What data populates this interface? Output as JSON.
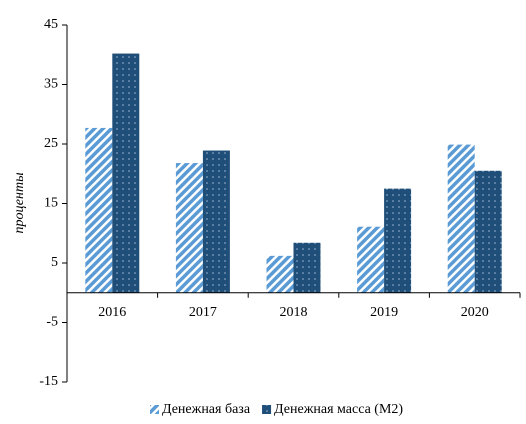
{
  "chart_data": {
    "type": "bar",
    "y_label": "проценты",
    "categories": [
      "2016",
      "2017",
      "2018",
      "2019",
      "2020"
    ],
    "series": [
      {
        "name": "Денежная база",
        "color": "#5b9bd5",
        "values": [
          27.7,
          21.8,
          6.2,
          11.1,
          24.9
        ]
      },
      {
        "name": "Денежная масса (M2)",
        "color": "#1f4e79",
        "values": [
          40.2,
          23.9,
          8.4,
          17.5,
          20.5
        ]
      }
    ],
    "ylim": [
      -15,
      45
    ],
    "yticks": [
      -15,
      -5,
      5,
      15,
      25,
      35,
      45
    ],
    "grid": false,
    "legend": "bottom"
  }
}
